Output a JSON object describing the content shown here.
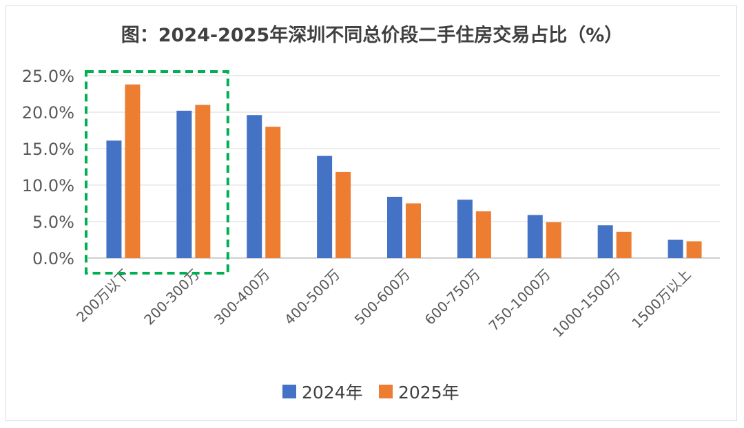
{
  "chart_data": {
    "type": "bar",
    "title": "图：2024-2025年深圳不同总价段二手住房交易占比（%）",
    "categories": [
      "200万以下",
      "200-300万",
      "300-400万",
      "400-500万",
      "500-600万",
      "600-750万",
      "750-1000万",
      "1000-1500万",
      "1500万以上"
    ],
    "series": [
      {
        "name": "2024年",
        "color": "#4472C4",
        "values": [
          16.1,
          20.2,
          19.6,
          14.0,
          8.4,
          8.0,
          5.9,
          4.5,
          2.5
        ]
      },
      {
        "name": "2025年",
        "color": "#ED7D31",
        "values": [
          23.8,
          21.0,
          18.0,
          11.8,
          7.5,
          6.4,
          4.9,
          3.6,
          2.3
        ]
      }
    ],
    "y_ticks": [
      "0.0%",
      "5.0%",
      "10.0%",
      "15.0%",
      "20.0%",
      "25.0%"
    ],
    "ylim": [
      0,
      25
    ],
    "grid": true,
    "legend_position": "bottom",
    "highlight": {
      "categories": [
        "200万以下",
        "200-300万"
      ],
      "color": "#00B050",
      "style": "dashed"
    }
  }
}
